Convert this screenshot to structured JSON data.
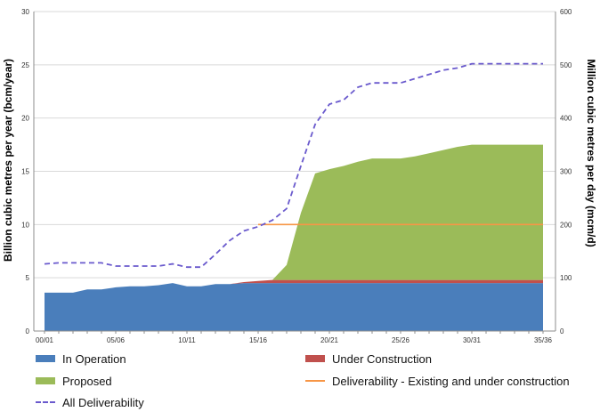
{
  "chart_data": {
    "type": "area",
    "categories": [
      "00/01",
      "01/02",
      "02/03",
      "03/04",
      "04/05",
      "05/06",
      "06/07",
      "07/08",
      "08/09",
      "09/10",
      "10/11",
      "11/12",
      "12/13",
      "13/14",
      "14/15",
      "15/16",
      "16/17",
      "17/18",
      "18/19",
      "19/20",
      "20/21",
      "21/22",
      "22/23",
      "23/24",
      "24/25",
      "25/26",
      "26/27",
      "27/28",
      "28/29",
      "29/30",
      "30/31",
      "31/32",
      "32/33",
      "33/34",
      "34/35",
      "35/36"
    ],
    "tick_labels": [
      "00/01",
      "05/06",
      "10/11",
      "15/16",
      "20/21",
      "25/26",
      "30/31",
      "35/36"
    ],
    "ylabel": "Billion cubic metres per year (bcm/year)",
    "y2label": "Million cubic metres per day (mcm/d)",
    "ylim": [
      0,
      30
    ],
    "y2lim": [
      0,
      600
    ],
    "yticks": [
      "0",
      "5",
      "10",
      "15",
      "20",
      "25",
      "30"
    ],
    "y2ticks": [
      "0",
      "100",
      "200",
      "300",
      "400",
      "500",
      "600"
    ],
    "grid": true,
    "legend_position": "bottom",
    "series": [
      {
        "name": "In Operation",
        "kind": "area",
        "stacked": true,
        "color": "#4a7ebb",
        "values": [
          3.6,
          3.6,
          3.6,
          3.9,
          3.9,
          4.1,
          4.2,
          4.2,
          4.3,
          4.5,
          4.2,
          4.2,
          4.4,
          4.4,
          4.5,
          4.5,
          4.5,
          4.5,
          4.5,
          4.5,
          4.5,
          4.5,
          4.5,
          4.5,
          4.5,
          4.5,
          4.5,
          4.5,
          4.5,
          4.5,
          4.5,
          4.5,
          4.5,
          4.5,
          4.5,
          4.5
        ]
      },
      {
        "name": "Under Construction",
        "kind": "area",
        "stacked": true,
        "color": "#c0504d",
        "values": [
          0,
          0,
          0,
          0,
          0,
          0,
          0,
          0,
          0,
          0,
          0,
          0,
          0,
          0,
          0.1,
          0.2,
          0.3,
          0.3,
          0.3,
          0.3,
          0.3,
          0.3,
          0.3,
          0.3,
          0.3,
          0.3,
          0.3,
          0.3,
          0.3,
          0.3,
          0.3,
          0.3,
          0.3,
          0.3,
          0.3,
          0.3
        ]
      },
      {
        "name": "Proposed",
        "kind": "area",
        "stacked": true,
        "color": "#9bbb59",
        "values": [
          0,
          0,
          0,
          0,
          0,
          0,
          0,
          0,
          0,
          0,
          0,
          0,
          0,
          0,
          0,
          0,
          0,
          1.4,
          6.3,
          10.0,
          10.4,
          10.7,
          11.1,
          11.4,
          11.4,
          11.4,
          11.6,
          11.9,
          12.2,
          12.5,
          12.7,
          12.7,
          12.7,
          12.7,
          12.7,
          12.7
        ]
      },
      {
        "name": "Deliverability - Existing and under construction",
        "kind": "line",
        "color": "#f79646",
        "values": [
          null,
          null,
          null,
          null,
          null,
          null,
          null,
          null,
          null,
          null,
          null,
          null,
          null,
          null,
          null,
          10.0,
          10.0,
          10.0,
          10.0,
          10.0,
          10.0,
          10.0,
          10.0,
          10.0,
          10.0,
          10.0,
          10.0,
          10.0,
          10.0,
          10.0,
          10.0,
          10.0,
          10.0,
          10.0,
          10.0,
          10.0
        ]
      },
      {
        "name": "All Deliverability",
        "kind": "dashed-line",
        "color": "#6a5acd",
        "values": [
          6.3,
          6.4,
          6.4,
          6.4,
          6.4,
          6.1,
          6.1,
          6.1,
          6.1,
          6.3,
          6.0,
          6.0,
          7.2,
          8.5,
          9.4,
          9.8,
          10.4,
          11.5,
          15.5,
          19.4,
          21.3,
          21.7,
          22.9,
          23.3,
          23.3,
          23.3,
          23.7,
          24.1,
          24.5,
          24.7,
          25.1,
          25.1,
          25.1,
          25.1,
          25.1,
          25.1
        ]
      }
    ]
  }
}
